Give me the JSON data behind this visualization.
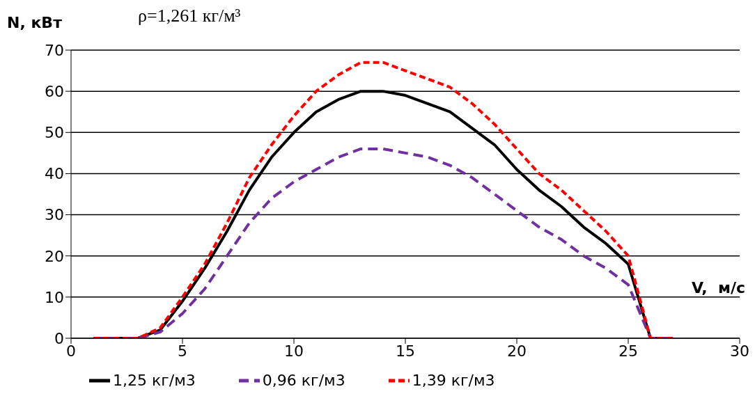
{
  "chart_data": {
    "type": "line",
    "xlabel": "V,  м/с",
    "ylabel": "N, кВт",
    "annotations": [
      "ρ=1,261 кг/м³"
    ],
    "x": [
      1,
      2,
      3,
      4,
      5,
      6,
      7,
      8,
      9,
      10,
      11,
      12,
      13,
      14,
      15,
      16,
      17,
      18,
      19,
      20,
      21,
      22,
      23,
      24,
      25,
      26,
      27
    ],
    "series": [
      {
        "name": "1,25 кг/м3",
        "color": "#000000",
        "line_style": "solid",
        "values": [
          0,
          0,
          0,
          2,
          9,
          17,
          26,
          36,
          44,
          50,
          55,
          58,
          60,
          60,
          59,
          57,
          55,
          51,
          47,
          41,
          36,
          32,
          27,
          23,
          18,
          0,
          0
        ]
      },
      {
        "name": "0,96 кг/м3",
        "color": "#7030a0",
        "line_style": "dashed",
        "values": [
          0,
          0,
          0,
          1.5,
          6,
          12,
          20,
          28,
          34,
          38,
          41,
          44,
          46,
          46,
          45,
          44,
          42,
          39,
          35,
          31,
          27,
          24,
          20,
          17,
          13,
          0,
          0
        ]
      },
      {
        "name": "1,39 кг/м3",
        "color": "#ff0000",
        "line_style": "dashed",
        "values": [
          0,
          0,
          0,
          2.5,
          10,
          18,
          28,
          39,
          47,
          54,
          60,
          64,
          67,
          67,
          65,
          63,
          61,
          57,
          52,
          46,
          40,
          36,
          31,
          26,
          20,
          0,
          0
        ]
      }
    ],
    "xlim": [
      0,
      30
    ],
    "xticks": [
      0,
      5,
      10,
      15,
      20,
      25,
      30
    ],
    "ylim": [
      0,
      70
    ],
    "yticks": [
      0,
      10,
      20,
      30,
      40,
      50,
      60,
      70
    ],
    "grid": "y",
    "legend": "bottom",
    "marker": "none"
  }
}
